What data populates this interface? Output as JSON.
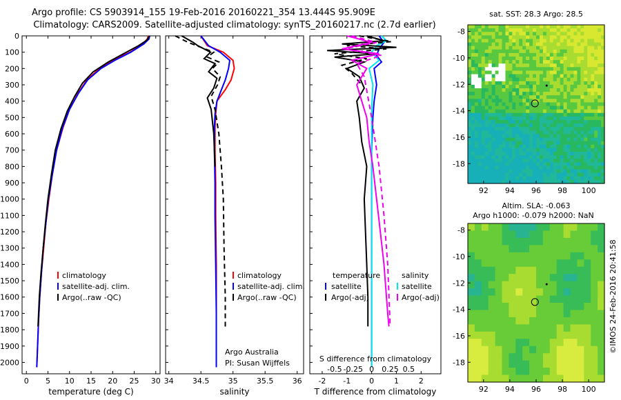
{
  "title_line1": "Argo profile: CS 5903914_155 19-Feb-2016 20160221_354 13.444S 95.909E",
  "title_line2": "Climatology: CARS2009. Satellite-adjusted climatology: synTS_20160217.nc (2.7d earlier)",
  "side_text": "©IMOS 24-Feb-2016 20:41:58",
  "colors": {
    "climatology": "#ff0000",
    "satellite": "#0000ff",
    "argo": "#000000",
    "satellite_diff": "#00e5ee",
    "argo_adj": "#ee00ee"
  },
  "chart_data": [
    {
      "id": "temperature",
      "type": "line",
      "xlabel": "temperature (deg C)",
      "ylabel": "",
      "xlim": [
        -1,
        31
      ],
      "ylim": [
        2070,
        0
      ],
      "x_ticks": [
        0,
        5,
        10,
        15,
        20,
        25,
        30
      ],
      "y_ticks": [
        0,
        100,
        200,
        300,
        400,
        500,
        600,
        700,
        800,
        900,
        1000,
        1100,
        1200,
        1300,
        1400,
        1500,
        1600,
        1700,
        1800,
        1900,
        2000
      ],
      "legend": [
        "climatology",
        "satellite-adj. clim.",
        "Argo(..raw -QC)"
      ],
      "series": [
        {
          "name": "climatology",
          "color": "#ff0000",
          "dash": false,
          "x": [
            28.3,
            28.0,
            27.0,
            24.0,
            20.0,
            17.0,
            14.0,
            12.0,
            10.0,
            8.5,
            7.0,
            6.0,
            5.2,
            4.5,
            4.0,
            3.5,
            3.1,
            2.8,
            2.6,
            2.4
          ],
          "y": [
            0,
            20,
            50,
            100,
            150,
            200,
            270,
            350,
            450,
            560,
            700,
            850,
            1000,
            1150,
            1300,
            1450,
            1600,
            1750,
            1900,
            2030
          ]
        },
        {
          "name": "satellite-adj. clim.",
          "color": "#0000ff",
          "dash": false,
          "x": [
            28.6,
            28.4,
            27.2,
            24.2,
            20.5,
            17.3,
            14.2,
            12.1,
            10.0,
            8.4,
            7.0,
            6.0,
            5.1,
            4.5,
            3.9,
            3.5,
            3.1,
            2.8,
            2.6,
            2.4
          ],
          "y": [
            0,
            20,
            50,
            100,
            150,
            200,
            270,
            350,
            450,
            560,
            700,
            850,
            1000,
            1150,
            1300,
            1450,
            1600,
            1750,
            1900,
            2030
          ]
        },
        {
          "name": "Argo(..raw -QC)",
          "color": "#000000",
          "dash": false,
          "x": [
            28.5,
            28.0,
            26.0,
            22.5,
            19.0,
            15.5,
            13.0,
            11.2,
            9.5,
            8.0,
            6.7,
            5.8,
            5.0,
            4.4,
            3.9,
            3.4,
            3.0,
            2.7
          ],
          "y": [
            0,
            25,
            60,
            110,
            160,
            220,
            290,
            370,
            460,
            570,
            700,
            850,
            1000,
            1150,
            1300,
            1450,
            1600,
            1780
          ]
        }
      ]
    },
    {
      "id": "salinity",
      "type": "line",
      "xlabel": "salinity",
      "xlim": [
        33.95,
        36.1
      ],
      "ylim": [
        2070,
        0
      ],
      "x_ticks": [
        34,
        34.5,
        35,
        35.5,
        36
      ],
      "legend": [
        "climatology",
        "satellite-adj. clim.",
        "Argo(..raw -QC)"
      ],
      "notes": [
        "Argo Australia",
        "PI: Susan Wijffels"
      ],
      "series": [
        {
          "name": "climatology",
          "color": "#ff0000",
          "dash": false,
          "x": [
            34.5,
            34.6,
            34.85,
            35.0,
            35.02,
            34.97,
            34.88,
            34.75,
            34.73,
            34.72,
            34.72,
            34.73,
            34.73,
            34.74,
            34.74,
            34.74,
            34.74
          ],
          "y": [
            0,
            60,
            100,
            150,
            200,
            270,
            330,
            400,
            480,
            560,
            700,
            900,
            1100,
            1400,
            1700,
            1900,
            2030
          ]
        },
        {
          "name": "satellite-adj. clim.",
          "color": "#0000ff",
          "dash": false,
          "x": [
            34.5,
            34.62,
            34.8,
            34.95,
            34.93,
            34.88,
            34.82,
            34.75,
            34.72,
            34.71,
            34.71,
            34.72,
            34.72,
            34.73,
            34.74,
            34.74
          ],
          "y": [
            0,
            60,
            100,
            150,
            200,
            270,
            330,
            400,
            480,
            560,
            700,
            900,
            1100,
            1400,
            1700,
            2030
          ]
        },
        {
          "name": "Argo raw",
          "color": "#000000",
          "dash": false,
          "x": [
            34.2,
            34.38,
            34.45,
            34.65,
            34.55,
            34.72,
            34.62,
            34.75,
            34.7,
            34.6,
            34.66,
            34.7,
            34.72
          ],
          "y": [
            0,
            40,
            60,
            100,
            140,
            170,
            220,
            260,
            320,
            380,
            450,
            600,
            800
          ]
        },
        {
          "name": "Argo(..raw -QC)",
          "color": "#000000",
          "dash": true,
          "x": [
            34.1,
            34.3,
            34.5,
            34.7,
            34.6,
            34.78,
            34.68,
            34.8,
            34.76,
            34.66,
            34.72,
            34.78,
            34.82,
            34.85,
            34.86,
            34.88,
            34.88
          ],
          "y": [
            0,
            40,
            70,
            100,
            130,
            160,
            200,
            250,
            300,
            370,
            450,
            600,
            800,
            1000,
            1300,
            1600,
            1790
          ]
        }
      ]
    },
    {
      "id": "difference",
      "type": "line",
      "xlabel": "T difference from climatology",
      "x2label": "S difference from climatology",
      "xlim": [
        -2.5,
        2.8
      ],
      "ylim": [
        2070,
        0
      ],
      "x_ticks": [
        -2,
        -1,
        0,
        1,
        2
      ],
      "x2_ticks": [
        "-0.5",
        "-0.25",
        "0",
        "0.25",
        "0.5"
      ],
      "legend_left": [
        "temperature",
        "satellite",
        "Argo(-adj)"
      ],
      "legend_right": [
        "salinity",
        "satellite",
        "Argo(-adj)"
      ],
      "series": [
        {
          "name": "T satellite",
          "color": "#0000ff",
          "dash": false,
          "x": [
            0.3,
            0.5,
            0.3,
            0.2,
            0.4,
            0.1,
            0.2,
            0.1,
            0.05,
            0.0,
            0.0,
            0.0,
            0.0
          ],
          "y": [
            0,
            40,
            80,
            120,
            160,
            200,
            300,
            400,
            500,
            700,
            1000,
            1500,
            2030
          ]
        },
        {
          "name": "S satellite",
          "color": "#00e5ee",
          "dash": false,
          "x": [
            0.4,
            0.6,
            0.2,
            0.0,
            0.3,
            -0.1,
            0.05,
            0.0,
            0.0,
            0.0,
            0.0,
            0.0
          ],
          "y": [
            0,
            30,
            60,
            100,
            150,
            200,
            300,
            450,
            700,
            1000,
            1500,
            2030
          ]
        },
        {
          "name": "T Argo(-adj)",
          "color": "#000000",
          "dash": false,
          "x": [
            -0.2,
            0.5,
            -1.2,
            1.0,
            -1.8,
            0.2,
            -1.5,
            -0.3,
            -1.0,
            -0.5,
            -0.3,
            -0.6,
            -0.5,
            -0.4,
            -0.2,
            -0.3,
            -0.25,
            -0.2,
            -0.15,
            -0.15
          ],
          "y": [
            0,
            30,
            50,
            70,
            90,
            110,
            130,
            160,
            200,
            250,
            320,
            400,
            500,
            650,
            800,
            1000,
            1200,
            1400,
            1600,
            1780
          ]
        },
        {
          "name": "T Argo dashed",
          "color": "#000000",
          "dash": true,
          "x": [
            -0.5,
            0.8,
            -1.0,
            0.6,
            -1.5,
            -0.2,
            -1.2,
            -0.8,
            -0.4
          ],
          "y": [
            0,
            35,
            60,
            80,
            110,
            140,
            180,
            230,
            300
          ]
        },
        {
          "name": "S Argo(-adj)",
          "color": "#ee00ee",
          "dash": false,
          "x": [
            -1.0,
            0.0,
            -1.2,
            0.3,
            -0.8,
            -0.2,
            -0.6,
            -0.4,
            -0.2,
            -0.1,
            0.05,
            0.2,
            0.35,
            0.5,
            0.6,
            0.65,
            0.7
          ],
          "y": [
            0,
            40,
            80,
            110,
            150,
            200,
            300,
            400,
            500,
            650,
            800,
            1000,
            1200,
            1400,
            1600,
            1700,
            1780
          ]
        },
        {
          "name": "S Argo dashed",
          "color": "#ee00ee",
          "dash": true,
          "x": [
            -0.8,
            0.2,
            -1.1,
            0.4,
            -0.6,
            -0.3,
            0.0,
            0.3,
            0.5,
            0.65,
            0.75
          ],
          "y": [
            0,
            40,
            80,
            120,
            170,
            250,
            500,
            800,
            1100,
            1400,
            1780
          ]
        }
      ]
    },
    {
      "id": "sst_map",
      "type": "heatmap",
      "title": "sat. SST: 28.3 Argo: 28.5",
      "xlim": [
        90.8,
        101.2
      ],
      "ylim": [
        -19.5,
        -7.5
      ],
      "x_ticks": [
        92,
        94,
        96,
        98,
        100
      ],
      "y_ticks": [
        -8,
        -10,
        -12,
        -14,
        -16,
        -18
      ],
      "marker_circle": {
        "lon": 95.909,
        "lat": -13.444
      },
      "marker_dot": {
        "lon": 96.8,
        "lat": -12.1
      }
    },
    {
      "id": "sla_map",
      "type": "heatmap",
      "title": "Altim. SLA: -0.063",
      "subtitle": "Argo h1000: -0.079 h2000: NaN",
      "xlim": [
        90.8,
        101.2
      ],
      "ylim": [
        -19.5,
        -7.5
      ],
      "x_ticks": [
        92,
        94,
        96,
        98,
        100
      ],
      "y_ticks": [
        -8,
        -10,
        -12,
        -14,
        -16,
        -18
      ],
      "marker_circle": {
        "lon": 95.909,
        "lat": -13.444
      },
      "marker_dot": {
        "lon": 96.8,
        "lat": -12.1
      }
    }
  ]
}
